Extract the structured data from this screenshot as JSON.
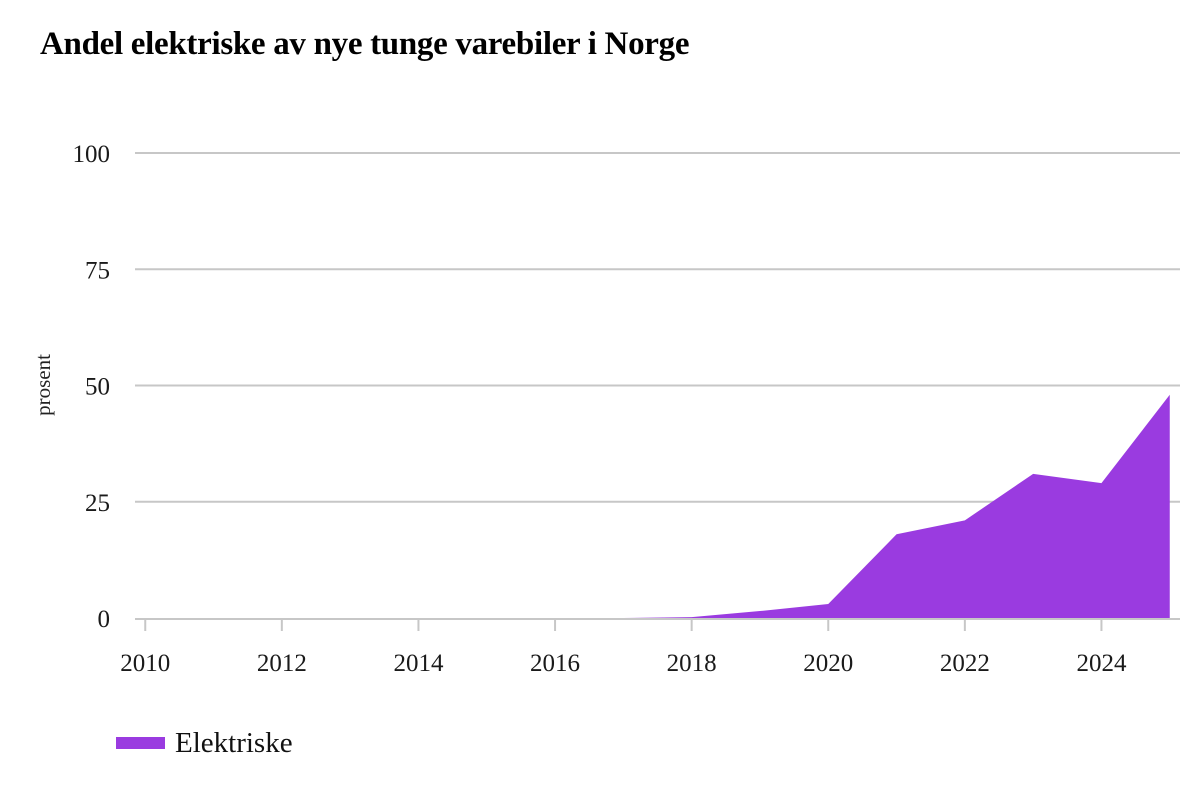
{
  "chart_data": {
    "type": "area",
    "title": "Andel elektriske av nye tunge varebiler i Norge",
    "ylabel": "prosent",
    "xlabel": "",
    "grid": "horizontal",
    "xlim": [
      2009.85,
      2025.15
    ],
    "ylim": [
      0,
      100
    ],
    "xticks": [
      2010,
      2012,
      2014,
      2016,
      2018,
      2020,
      2022,
      2024
    ],
    "yticks": [
      0,
      25,
      50,
      75,
      100
    ],
    "series": [
      {
        "name": "Elektriske",
        "color": "#9a3be0",
        "x": [
          2010,
          2011,
          2012,
          2013,
          2014,
          2015,
          2016,
          2017,
          2018,
          2019,
          2020,
          2021,
          2022,
          2023,
          2024,
          2025
        ],
        "values": [
          0,
          0,
          0,
          0,
          0,
          0,
          0,
          0,
          0.2,
          1.5,
          3,
          18,
          21,
          31,
          29,
          48
        ]
      }
    ],
    "legend": {
      "position": "bottom-left",
      "entries": [
        {
          "label": "Elektriske",
          "color": "#9a3be0"
        }
      ]
    },
    "colors": {
      "background": "#ffffff",
      "grid": "#c7c7c7",
      "axis": "#c7c7c7",
      "text": "#1a1a1a",
      "title": "#000000"
    }
  }
}
